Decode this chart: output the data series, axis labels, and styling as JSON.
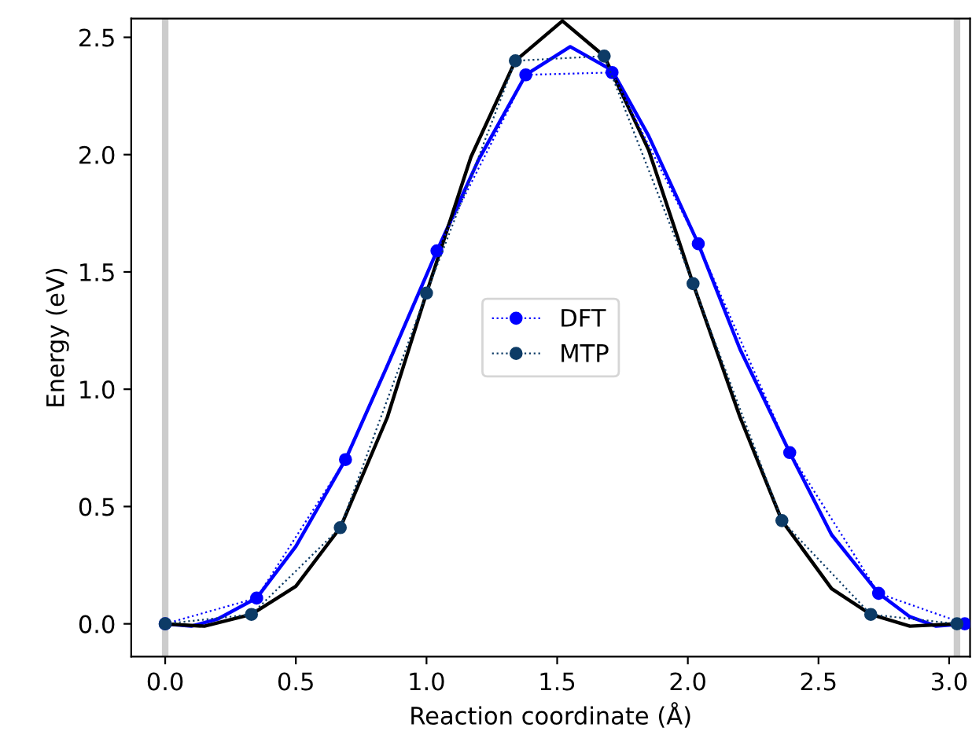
{
  "chart_data": {
    "type": "line",
    "xlabel": "Reaction coordinate (Å)",
    "ylabel": "Energy (eV)",
    "xlim": [
      -0.13,
      3.08
    ],
    "ylim": [
      -0.14,
      2.58
    ],
    "xticks": [
      {
        "value": 0,
        "label": "0.0"
      },
      0.5,
      {
        "value": 1,
        "label": "1.0"
      },
      1.5,
      {
        "value": 2,
        "label": "2.0"
      },
      2.5,
      {
        "value": 3,
        "label": "3.0"
      }
    ],
    "yticks": [
      {
        "value": 0,
        "label": "0.0"
      },
      0.5,
      {
        "value": 1,
        "label": "1.0"
      },
      1.5,
      {
        "value": 2,
        "label": "2.0"
      },
      2.5
    ],
    "grid": false,
    "legend": "center",
    "ref_lines": [
      {
        "axis": "x",
        "value": 0,
        "color": "#cccccc"
      },
      {
        "axis": "x",
        "value": 3.03,
        "color": "#cccccc"
      }
    ],
    "series": [
      {
        "name": "DFT",
        "color": "#0000ff",
        "marker": "circle",
        "line_style": "dotted",
        "x": [
          0,
          0.35,
          0.69,
          1.04,
          1.38,
          1.71,
          2.04,
          2.39,
          2.73,
          3.06
        ],
        "values": [
          0,
          0.11,
          0.7,
          1.59,
          2.34,
          2.35,
          1.62,
          0.73,
          0.13,
          0.0
        ]
      },
      {
        "name": "MTP",
        "color": "#0d3b66",
        "marker": "circle",
        "line_style": "dotted",
        "x": [
          0,
          0.33,
          0.67,
          1.0,
          1.34,
          1.68,
          2.02,
          2.36,
          2.7,
          3.03
        ],
        "values": [
          0,
          0.04,
          0.41,
          1.41,
          2.4,
          2.42,
          1.45,
          0.44,
          0.04,
          0.0
        ]
      },
      {
        "color": "#0000ff",
        "marker": "none",
        "line_style": "solid",
        "x": [
          0,
          0.1,
          0.2,
          0.35,
          0.5,
          0.69,
          0.85,
          1.04,
          1.2,
          1.38,
          1.55,
          1.71,
          1.85,
          2.04,
          2.2,
          2.39,
          2.55,
          2.73,
          2.85,
          2.95,
          3.06
        ],
        "values": [
          0,
          -0.01,
          0.02,
          0.11,
          0.33,
          0.7,
          1.1,
          1.59,
          1.98,
          2.34,
          2.46,
          2.36,
          2.08,
          1.62,
          1.17,
          0.73,
          0.38,
          0.13,
          0.03,
          -0.01,
          0.0
        ]
      },
      {
        "color": "#000000",
        "marker": "none",
        "line_style": "solid",
        "x": [
          0,
          0.15,
          0.33,
          0.5,
          0.67,
          0.85,
          1.0,
          1.17,
          1.34,
          1.52,
          1.68,
          1.85,
          2.02,
          2.2,
          2.36,
          2.55,
          2.7,
          2.85,
          3.03
        ],
        "values": [
          0,
          -0.01,
          0.04,
          0.16,
          0.41,
          0.88,
          1.41,
          1.99,
          2.4,
          2.57,
          2.42,
          2.02,
          1.45,
          0.88,
          0.44,
          0.15,
          0.04,
          -0.01,
          0.0
        ]
      }
    ]
  }
}
